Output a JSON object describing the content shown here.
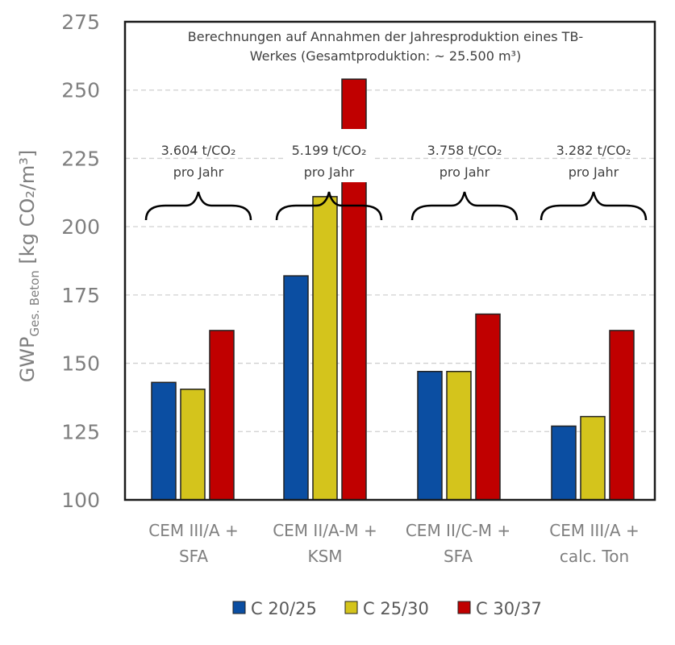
{
  "chart_data": {
    "type": "bar",
    "title": "",
    "ylabel": {
      "main": "GWP",
      "sub": "Ges. Beton",
      "unit": "[kg CO₂/m³]"
    },
    "ylim": [
      100,
      275
    ],
    "yticks": [
      100,
      125,
      150,
      175,
      200,
      225,
      250,
      275
    ],
    "grid": true,
    "categories": [
      [
        "CEM III/A +",
        "SFA"
      ],
      [
        "CEM II/A-M +",
        "KSM"
      ],
      [
        "CEM II/C-M +",
        "SFA"
      ],
      [
        "CEM III/A +",
        "calc. Ton"
      ]
    ],
    "series": [
      {
        "name": "C 20/25",
        "color": "#0b4ea2",
        "values": [
          143,
          182,
          147,
          127
        ]
      },
      {
        "name": "C 25/30",
        "color": "#d4c41c",
        "values": [
          140.5,
          211,
          147,
          130.5
        ]
      },
      {
        "name": "C 30/37",
        "color": "#c00000",
        "values": [
          162,
          254,
          168,
          162
        ]
      }
    ],
    "annotations": [
      {
        "line1": "3.604 t/CO₂",
        "line2": "pro Jahr"
      },
      {
        "line1": "5.199 t/CO₂",
        "line2": "pro Jahr"
      },
      {
        "line1": "3.758 t/CO₂",
        "line2": "pro Jahr"
      },
      {
        "line1": "3.282 t/CO₂",
        "line2": "pro Jahr"
      }
    ],
    "note": [
      "Berechnungen auf Annahmen der Jahresproduktion eines TB-",
      "Werkes (Gesamtproduktion: ~ 25.500 m³)"
    ],
    "legend_position": "bottom"
  }
}
